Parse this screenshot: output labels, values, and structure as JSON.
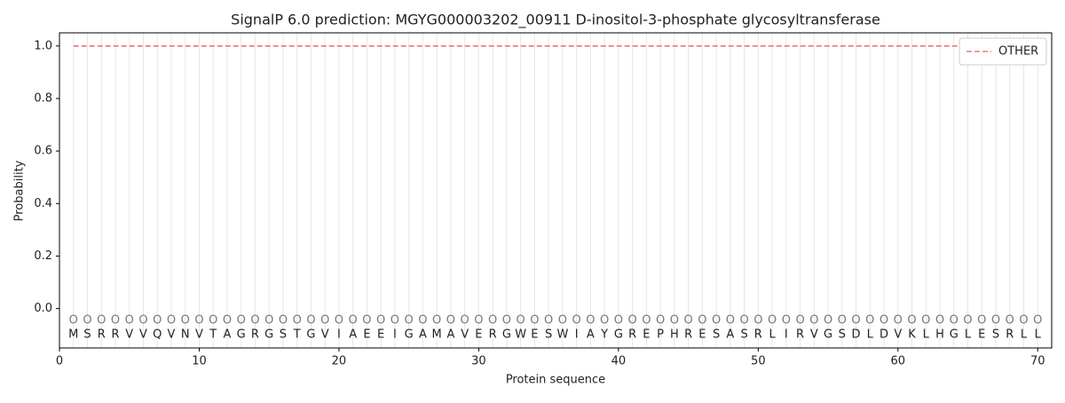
{
  "chart_data": {
    "type": "line",
    "title": "SignalP 6.0 prediction: MGYG000003202_00911 D-inositol-3-phosphate glycosyltransferase",
    "x_label": "Protein sequence",
    "y_label": "Probability",
    "x": [
      1,
      2,
      3,
      4,
      5,
      6,
      7,
      8,
      9,
      10,
      11,
      12,
      13,
      14,
      15,
      16,
      17,
      18,
      19,
      20,
      21,
      22,
      23,
      24,
      25,
      26,
      27,
      28,
      29,
      30,
      31,
      32,
      33,
      34,
      35,
      36,
      37,
      38,
      39,
      40,
      41,
      42,
      43,
      44,
      45,
      46,
      47,
      48,
      49,
      50,
      51,
      52,
      53,
      54,
      55,
      56,
      57,
      58,
      59,
      60,
      61,
      62,
      63,
      64,
      65,
      66,
      67,
      68,
      69,
      70
    ],
    "residues": [
      "M",
      "S",
      "R",
      "R",
      "V",
      "V",
      "Q",
      "V",
      "N",
      "V",
      "T",
      "A",
      "G",
      "R",
      "G",
      "S",
      "T",
      "G",
      "V",
      "I",
      "A",
      "E",
      "E",
      "I",
      "G",
      "A",
      "M",
      "A",
      "V",
      "E",
      "R",
      "G",
      "W",
      "E",
      "S",
      "W",
      "I",
      "A",
      "Y",
      "G",
      "R",
      "E",
      "P",
      "H",
      "R",
      "E",
      "S",
      "A",
      "S",
      "R",
      "L",
      "I",
      "R",
      "V",
      "G",
      "S",
      "D",
      "L",
      "D",
      "V",
      "K",
      "L",
      "H",
      "G",
      "L",
      "E",
      "S",
      "R",
      "L",
      "L"
    ],
    "predicted_labels": [
      "O",
      "O",
      "O",
      "O",
      "O",
      "O",
      "O",
      "O",
      "O",
      "O",
      "O",
      "O",
      "O",
      "O",
      "O",
      "O",
      "O",
      "O",
      "O",
      "O",
      "O",
      "O",
      "O",
      "O",
      "O",
      "O",
      "O",
      "O",
      "O",
      "O",
      "O",
      "O",
      "O",
      "O",
      "O",
      "O",
      "O",
      "O",
      "O",
      "O",
      "O",
      "O",
      "O",
      "O",
      "O",
      "O",
      "O",
      "O",
      "O",
      "O",
      "O",
      "O",
      "O",
      "O",
      "O",
      "O",
      "O",
      "O",
      "O",
      "O",
      "O",
      "O",
      "O",
      "O",
      "O",
      "O",
      "O",
      "O",
      "O",
      "O"
    ],
    "series": [
      {
        "name": "OTHER",
        "color": "#f07878",
        "dashed": true,
        "values": [
          1,
          1,
          1,
          1,
          1,
          1,
          1,
          1,
          1,
          1,
          1,
          1,
          1,
          1,
          1,
          1,
          1,
          1,
          1,
          1,
          1,
          1,
          1,
          1,
          1,
          1,
          1,
          1,
          1,
          1,
          1,
          1,
          1,
          1,
          1,
          1,
          1,
          1,
          1,
          1,
          1,
          1,
          1,
          1,
          1,
          1,
          1,
          1,
          1,
          1,
          1,
          1,
          1,
          1,
          1,
          1,
          1,
          1,
          1,
          1,
          1,
          1,
          1,
          1,
          1,
          1,
          1,
          1,
          1,
          1
        ]
      }
    ],
    "xlim": [
      0,
      71
    ],
    "ylim": [
      -0.15,
      1.05
    ],
    "xticks": [
      0,
      10,
      20,
      30,
      40,
      50,
      60,
      70
    ],
    "yticks": [
      {
        "value": 0,
        "label": "0.0"
      },
      {
        "value": 0.2,
        "label": "0.2"
      },
      {
        "value": 0.4,
        "label": "0.4"
      },
      {
        "value": 0.6,
        "label": "0.6"
      },
      {
        "value": 0.8,
        "label": "0.8"
      },
      {
        "value": 1,
        "label": "1.0"
      }
    ],
    "legend": "upper right"
  }
}
